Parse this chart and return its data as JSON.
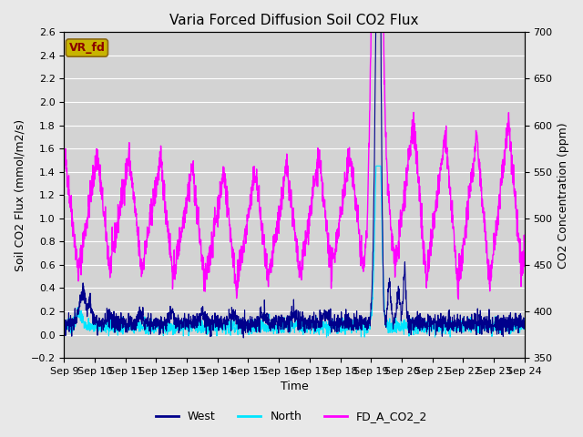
{
  "title": "Varia Forced Diffusion Soil CO2 Flux",
  "xlabel": "Time",
  "ylabel_left": "Soil CO2 Flux (mmol/m2/s)",
  "ylabel_right": "CO2 Concentration (ppm)",
  "ylim_left": [
    -0.2,
    2.6
  ],
  "ylim_right": [
    350,
    700
  ],
  "background_color": "#e8e8e8",
  "plot_bg_color": "#d3d3d3",
  "legend_label_box": "VR_fd",
  "legend_box_facecolor": "#c8b400",
  "legend_box_edgecolor": "#8b6914",
  "legend_box_text_color": "#8b0000",
  "series_West_color": "#00008b",
  "series_North_color": "#00e5ff",
  "series_CO2_color": "#ff00ff",
  "lw_flux": 0.8,
  "lw_co2": 1.0,
  "tick_label_fontsize": 8,
  "axis_label_fontsize": 9,
  "title_fontsize": 11,
  "n_points": 2000,
  "x_tick_days": [
    9,
    10,
    11,
    12,
    13,
    14,
    15,
    16,
    17,
    18,
    19,
    20,
    21,
    22,
    23,
    24
  ]
}
